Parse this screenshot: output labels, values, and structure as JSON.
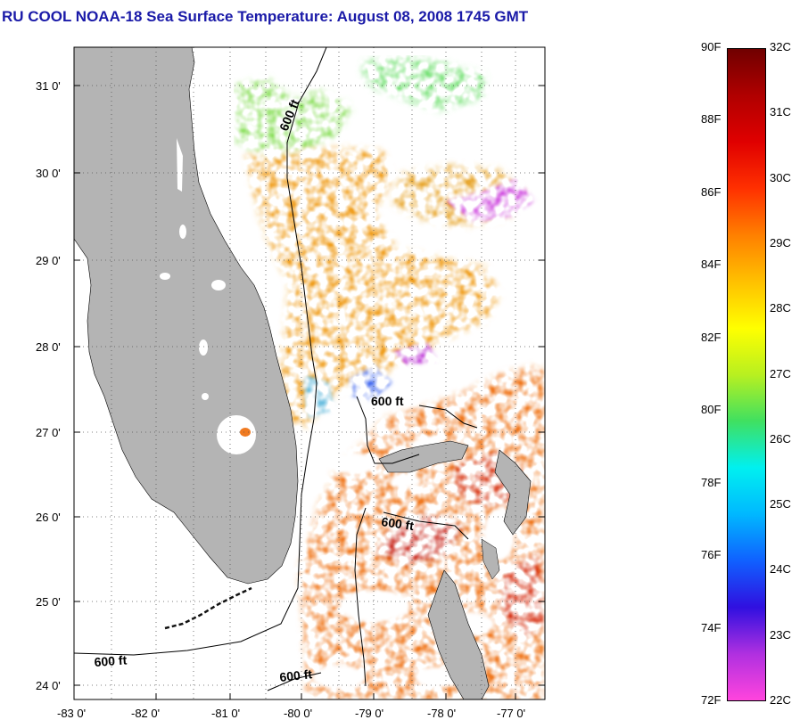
{
  "title": "RU COOL  NOAA-18  Sea Surface Temperature:  August 08, 2008 1745 GMT",
  "map": {
    "lat_labels": [
      "31 0'",
      "30 0'",
      "29 0'",
      "28 0'",
      "27 0'",
      "26 0'",
      "25 0'",
      "24 0'"
    ],
    "lon_labels": [
      "-83 0'",
      "-82 0'",
      "-81 0'",
      "-80 0'",
      "-79 0'",
      "-78 0'",
      "-77 0'"
    ],
    "contour_labels": [
      "600 ft",
      "600 ft",
      "600 ft",
      "600 ft",
      "600 ft"
    ],
    "colors": {
      "land": "#b4b4b4",
      "title": "#1a1aa8",
      "warm": "#f2a326",
      "hot": "#e0401a",
      "mild": "#ffe040",
      "cool": "#58d070"
    }
  },
  "colorbar": {
    "fahrenheit": [
      "90F",
      "88F",
      "86F",
      "84F",
      "82F",
      "80F",
      "78F",
      "76F",
      "74F",
      "72F"
    ],
    "celsius": [
      "32C",
      "31C",
      "30C",
      "29C",
      "28C",
      "27C",
      "26C",
      "25C",
      "24C",
      "23C",
      "22C"
    ],
    "gradient_colors": [
      "#ff44dd",
      "#b030e0",
      "#3010e0",
      "#1060ff",
      "#00b8ff",
      "#00f0f0",
      "#40e060",
      "#b8f020",
      "#ffff00",
      "#ffc000",
      "#ff8000",
      "#ff3000",
      "#e00000",
      "#b00000",
      "#700000"
    ]
  }
}
